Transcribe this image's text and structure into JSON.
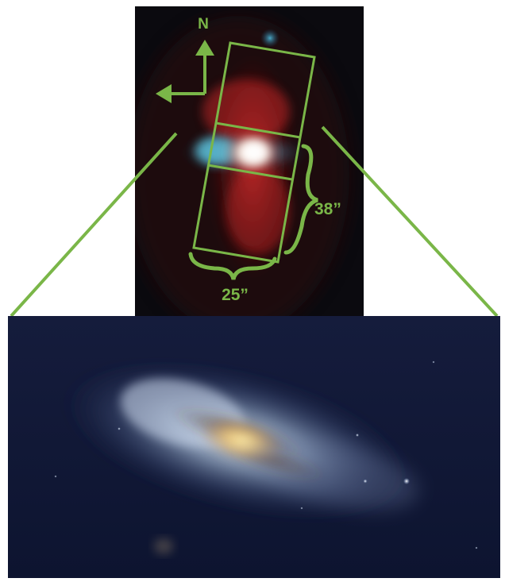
{
  "top_panel": {
    "compass_north_label": "N",
    "width_label": "25”",
    "height_label": "38”"
  },
  "colors": {
    "overlay_green": "#7ab648",
    "background_top": "#0a0a0e",
    "background_bottom": "#131a3a",
    "red_emission": "#c0282a",
    "blue_disk": "#3aa6c8"
  }
}
